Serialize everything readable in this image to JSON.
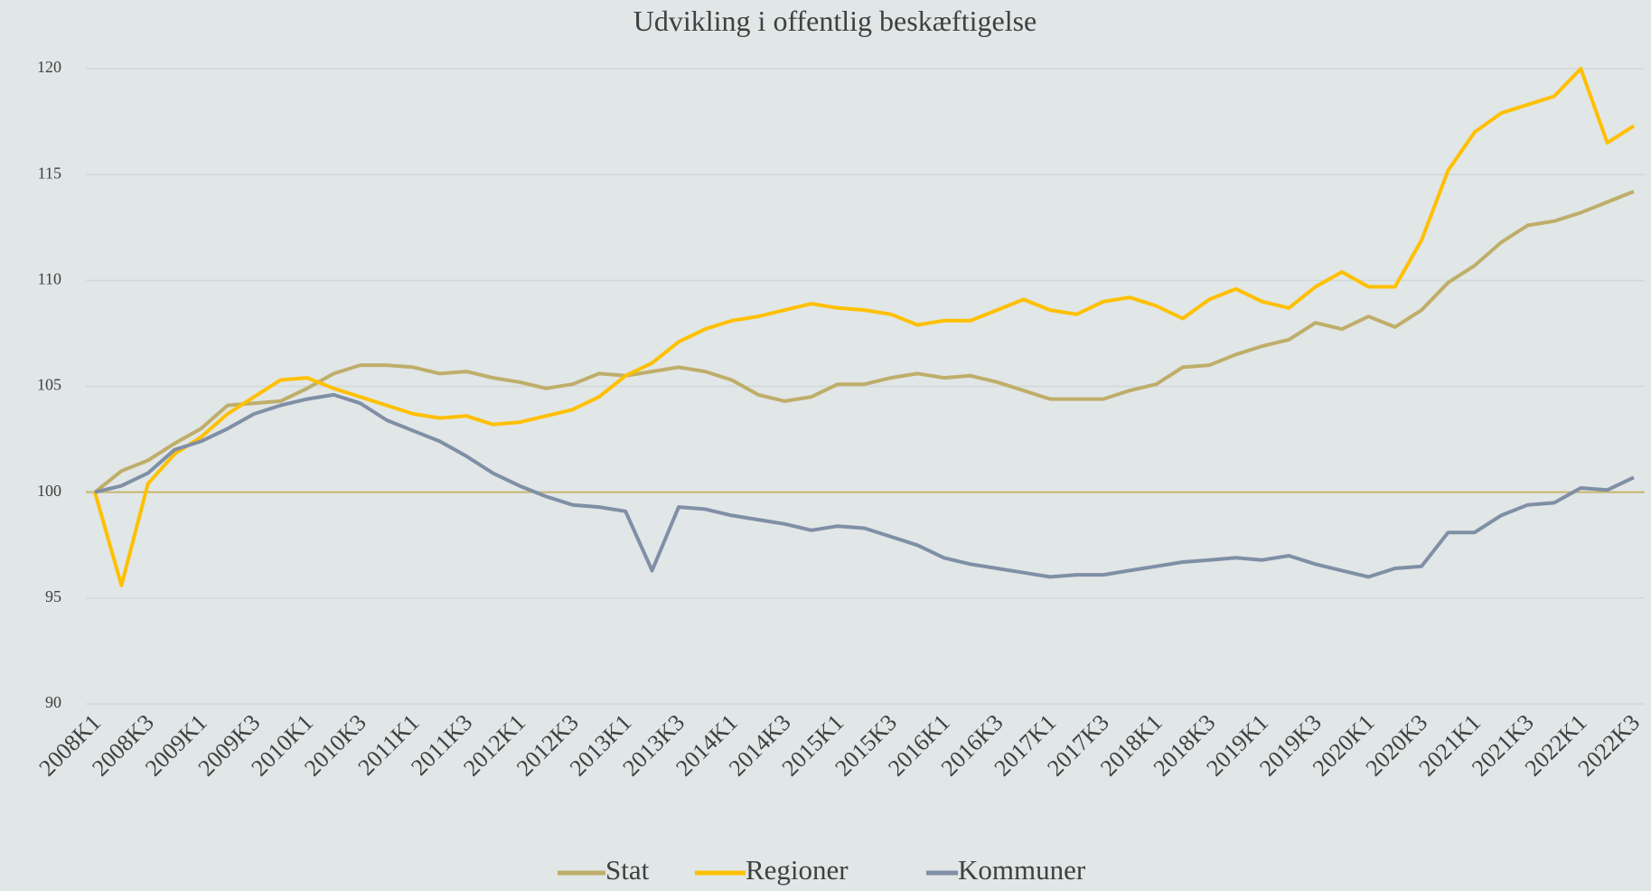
{
  "chart_data": {
    "type": "line",
    "title": "Udvikling i offentlig beskæftigelse",
    "categories": [
      "2008K1",
      null,
      "2008K3",
      null,
      "2009K1",
      null,
      "2009K3",
      null,
      "2010K1",
      null,
      "2010K3",
      null,
      "2011K1",
      null,
      "2011K3",
      null,
      "2012K1",
      null,
      "2012K3",
      null,
      "2013K1",
      null,
      "2013K3",
      null,
      "2014K1",
      null,
      "2014K3",
      null,
      "2015K1",
      null,
      "2015K3",
      null,
      "2016K1",
      null,
      "2016K3",
      null,
      "2017K1",
      null,
      "2017K3",
      null,
      "2018K1",
      null,
      "2018K3",
      null,
      "2019K1",
      null,
      "2019K3",
      null,
      "2020K1",
      null,
      "2020K3",
      null,
      "2021K1",
      null,
      "2021K3",
      null,
      "2022K1",
      null,
      "2022K3"
    ],
    "series": [
      {
        "name": "Stat",
        "color": "#bfae6a",
        "values": [
          100,
          101.0,
          101.5,
          102.3,
          103.0,
          104.1,
          104.2,
          104.3,
          104.9,
          105.6,
          106.0,
          106.0,
          105.9,
          105.6,
          105.7,
          105.4,
          105.2,
          104.9,
          105.1,
          105.6,
          105.5,
          105.7,
          105.9,
          105.7,
          105.3,
          104.6,
          104.3,
          104.5,
          105.1,
          105.1,
          105.4,
          105.6,
          105.4,
          105.5,
          105.2,
          104.8,
          104.4,
          104.4,
          104.4,
          104.8,
          105.1,
          105.9,
          106.0,
          106.5,
          106.9,
          107.2,
          108.0,
          107.7,
          108.3,
          107.8,
          108.6,
          109.9,
          110.7,
          111.8,
          112.6,
          112.8,
          113.2,
          113.7,
          114.2
        ]
      },
      {
        "name": "Regioner",
        "color": "#ffc000",
        "values": [
          100,
          95.6,
          100.4,
          101.8,
          102.6,
          103.7,
          104.5,
          105.3,
          105.4,
          104.9,
          104.5,
          104.1,
          103.7,
          103.5,
          103.6,
          103.2,
          103.3,
          103.6,
          103.9,
          104.5,
          105.5,
          106.1,
          107.1,
          107.7,
          108.1,
          108.3,
          108.6,
          108.9,
          108.7,
          108.6,
          108.4,
          107.9,
          108.1,
          108.1,
          108.6,
          109.1,
          108.6,
          108.4,
          109.0,
          109.2,
          108.8,
          108.2,
          109.1,
          109.6,
          109.0,
          108.7,
          109.7,
          110.4,
          109.7,
          109.7,
          111.9,
          115.2,
          117.0,
          117.9,
          118.3,
          118.7,
          120.0,
          116.5,
          117.3
        ]
      },
      {
        "name": "Kommuner",
        "color": "#7f8fa6",
        "values": [
          100,
          100.3,
          100.9,
          102.0,
          102.4,
          103.0,
          103.7,
          104.1,
          104.4,
          104.6,
          104.2,
          103.4,
          102.9,
          102.4,
          101.7,
          100.9,
          100.3,
          99.8,
          99.4,
          99.3,
          99.1,
          96.3,
          99.3,
          99.2,
          98.9,
          98.7,
          98.5,
          98.2,
          98.4,
          98.3,
          97.9,
          97.5,
          96.9,
          96.6,
          96.4,
          96.2,
          96.0,
          96.1,
          96.1,
          96.3,
          96.5,
          96.7,
          96.8,
          96.9,
          96.8,
          97.0,
          96.6,
          96.3,
          96.0,
          96.4,
          96.5,
          98.1,
          98.1,
          98.9,
          99.4,
          99.5,
          100.2,
          100.1,
          100.7
        ]
      }
    ],
    "ylim": [
      90,
      120
    ],
    "yticks": [
      90,
      95,
      100,
      105,
      110,
      115,
      120
    ],
    "grid": true,
    "reference_line": {
      "value": 100,
      "color": "#c8b66e"
    },
    "legend": "bottom"
  }
}
